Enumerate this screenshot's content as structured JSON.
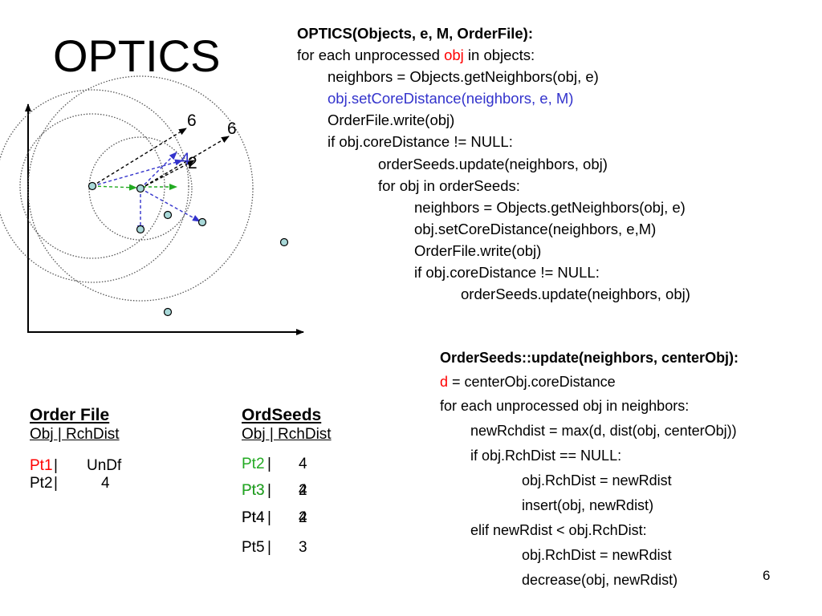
{
  "title": "OPTICS",
  "page_number": "6",
  "diagram": {
    "labels": {
      "black_6_a": "6",
      "black_6_b": "6",
      "blue_4": "4",
      "black_2": "2"
    },
    "colors": {
      "point_fill": "#a8d8d8",
      "arrow_black": "#000000",
      "arrow_blue": "#3333cc",
      "arrow_green": "#22aa22",
      "circle": "#555555"
    }
  },
  "optics_code": {
    "signature": "OPTICS(Objects, e, M, OrderFile):",
    "line1_pre": "for each unprocessed ",
    "line1_obj": "obj",
    "line1_post": " in objects:",
    "line2": "neighbors = Objects.getNeighbors(obj, e)",
    "line3": "obj.setCoreDistance(neighbors, e, M)",
    "line4": "OrderFile.write(obj)",
    "line5": "if obj.coreDistance != NULL:",
    "line6": "orderSeeds.update(neighbors, obj)",
    "line7": "for obj in orderSeeds:",
    "line8": "neighbors = Objects.getNeighbors(obj, e)",
    "line9": "obj.setCoreDistance(neighbors, e,M)",
    "line10": "OrderFile.write(obj)",
    "line11": "if obj.coreDistance != NULL:",
    "line12": "orderSeeds.update(neighbors, obj)"
  },
  "update_code": {
    "signature": "OrderSeeds::update(neighbors, centerObj):",
    "line1_d": "d",
    "line1_post": " = centerObj.coreDistance",
    "line2": "for each unprocessed obj in neighbors:",
    "line3": "newRchdist = max(d, dist(obj, centerObj))",
    "line4": "if obj.RchDist == NULL:",
    "line5": "obj.RchDist = newRdist",
    "line6": "insert(obj, newRdist)",
    "line7": "elif newRdist < obj.RchDist:",
    "line8": "obj.RchDist = newRdist",
    "line9": "decrease(obj, newRdist)"
  },
  "order_file": {
    "heading": "Order File",
    "columns": "Obj |  RchDist",
    "rows": [
      {
        "obj": "Pt1",
        "sep": " |",
        "dist": "UnDf"
      },
      {
        "obj": "Pt2",
        "sep": " |",
        "dist": "4"
      }
    ]
  },
  "ord_seeds": {
    "heading": "OrdSeeds",
    "columns": "Obj |  RchDist",
    "rows": [
      {
        "obj": "Pt2",
        "sep": " |",
        "dist": "4"
      },
      {
        "obj": "Pt3",
        "sep": " |",
        "dist": "2",
        "overlay_obj": "Pt3",
        "overlay_dist": "4"
      },
      {
        "obj": "Pt4",
        "sep": " |",
        "dist": "4",
        "overlay_obj": "Pt4",
        "overlay_dist": "2"
      },
      {
        "obj": "Pt5",
        "sep": " |",
        "dist": "3"
      }
    ]
  }
}
